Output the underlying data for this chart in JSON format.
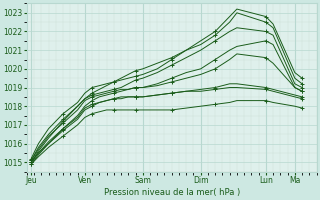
{
  "bg_color": "#cde8e2",
  "plot_bg_color": "#dff0ec",
  "grid_color": "#b8d8d0",
  "minor_grid_color": "#cce0d8",
  "line_color": "#1a5c1a",
  "xlabel": "Pression niveau de la mer( hPa )",
  "ylim": [
    1014.5,
    1023.5
  ],
  "xlim": [
    0,
    20
  ],
  "yticks": [
    1015,
    1016,
    1017,
    1018,
    1019,
    1020,
    1021,
    1022,
    1023
  ],
  "day_labels": [
    "Jeu",
    "Ven",
    "Sam",
    "Dim",
    "Lun",
    "Ma"
  ],
  "day_positions": [
    0.3,
    4.0,
    8.0,
    12.0,
    16.5,
    18.5
  ],
  "series": [
    {
      "x": [
        0.3,
        0.8,
        1.5,
        2.5,
        3.5,
        4.0,
        4.5,
        5.0,
        5.5,
        6.0,
        6.5,
        7.0,
        7.5,
        8.0,
        9.0,
        10.0,
        11.0,
        12.0,
        13.0,
        14.0,
        14.5,
        16.5,
        17.0,
        18.5,
        19.0
      ],
      "y": [
        1014.9,
        1015.4,
        1016.0,
        1016.8,
        1017.5,
        1018.0,
        1018.3,
        1018.5,
        1018.6,
        1018.7,
        1018.8,
        1018.9,
        1019.0,
        1019.0,
        1019.2,
        1019.5,
        1019.8,
        1020.0,
        1020.5,
        1021.0,
        1021.2,
        1021.5,
        1021.3,
        1019.0,
        1018.8
      ]
    },
    {
      "x": [
        0.3,
        0.8,
        1.5,
        2.5,
        3.5,
        4.0,
        4.5,
        5.0,
        5.5,
        6.0,
        6.5,
        7.0,
        7.5,
        8.0,
        9.0,
        10.0,
        11.0,
        12.0,
        13.0,
        14.0,
        14.5,
        16.5,
        17.0,
        18.5,
        19.0
      ],
      "y": [
        1015.0,
        1015.6,
        1016.3,
        1017.2,
        1018.0,
        1018.4,
        1018.6,
        1018.7,
        1018.8,
        1018.9,
        1019.0,
        1019.2,
        1019.4,
        1019.5,
        1019.8,
        1020.2,
        1020.6,
        1021.0,
        1021.5,
        1022.0,
        1022.2,
        1022.0,
        1021.8,
        1019.2,
        1019.0
      ]
    },
    {
      "x": [
        0.3,
        0.8,
        1.5,
        2.5,
        3.5,
        4.0,
        4.5,
        5.0,
        5.5,
        6.0,
        6.5,
        7.0,
        7.5,
        8.0,
        9.0,
        10.0,
        11.0,
        12.0,
        13.0,
        14.0,
        14.5,
        16.5,
        17.0,
        18.5,
        19.0
      ],
      "y": [
        1015.1,
        1015.8,
        1016.5,
        1017.3,
        1018.0,
        1018.4,
        1018.7,
        1018.9,
        1019.1,
        1019.3,
        1019.5,
        1019.7,
        1019.9,
        1020.0,
        1020.3,
        1020.6,
        1021.0,
        1021.3,
        1021.8,
        1022.5,
        1023.0,
        1022.5,
        1022.2,
        1019.5,
        1019.2
      ]
    },
    {
      "x": [
        0.3,
        0.8,
        1.5,
        2.5,
        3.5,
        4.0,
        4.5,
        5.0,
        5.5,
        6.0,
        6.5,
        7.0,
        7.5,
        8.0,
        9.0,
        10.0,
        11.0,
        12.0,
        13.0,
        14.0,
        14.5,
        16.5,
        17.0,
        18.5,
        19.0
      ],
      "y": [
        1015.2,
        1016.0,
        1016.8,
        1017.6,
        1018.2,
        1018.7,
        1019.0,
        1019.1,
        1019.2,
        1019.3,
        1019.4,
        1019.5,
        1019.6,
        1019.7,
        1020.0,
        1020.5,
        1021.0,
        1021.5,
        1022.0,
        1022.8,
        1023.2,
        1022.8,
        1022.4,
        1019.8,
        1019.5
      ]
    },
    {
      "x": [
        0.3,
        0.8,
        1.5,
        2.5,
        3.5,
        4.0,
        4.5,
        5.0,
        5.5,
        6.0,
        6.5,
        7.0,
        7.5,
        8.0,
        9.0,
        10.0,
        11.0,
        12.0,
        13.0,
        14.0,
        14.5,
        16.5,
        17.0,
        18.5,
        19.0
      ],
      "y": [
        1015.0,
        1015.5,
        1016.0,
        1016.7,
        1017.3,
        1017.8,
        1018.0,
        1018.2,
        1018.3,
        1018.4,
        1018.5,
        1018.5,
        1018.5,
        1018.5,
        1018.6,
        1018.7,
        1018.8,
        1018.9,
        1019.0,
        1019.2,
        1019.2,
        1019.0,
        1018.9,
        1018.6,
        1018.5
      ]
    },
    {
      "x": [
        0.3,
        0.8,
        1.5,
        2.5,
        3.5,
        4.0,
        4.5,
        5.0,
        5.5,
        6.0,
        6.5,
        7.0,
        7.5,
        8.0,
        9.0,
        10.0,
        11.0,
        12.0,
        13.0,
        14.0,
        14.5,
        16.5,
        17.0,
        18.5,
        19.0
      ],
      "y": [
        1014.9,
        1015.3,
        1015.8,
        1016.4,
        1017.0,
        1017.4,
        1017.6,
        1017.7,
        1017.8,
        1017.8,
        1017.8,
        1017.8,
        1017.8,
        1017.8,
        1017.8,
        1017.8,
        1017.9,
        1018.0,
        1018.1,
        1018.2,
        1018.3,
        1018.3,
        1018.2,
        1018.0,
        1017.9
      ]
    },
    {
      "x": [
        0.3,
        0.8,
        1.5,
        2.5,
        3.5,
        4.0,
        4.5,
        5.0,
        5.5,
        6.0,
        6.5,
        7.0,
        7.5,
        8.0,
        9.0,
        10.0,
        11.0,
        12.0,
        13.0,
        14.0,
        14.5,
        16.5,
        17.0,
        18.5,
        19.0
      ],
      "y": [
        1015.0,
        1015.5,
        1016.1,
        1016.8,
        1017.4,
        1017.9,
        1018.1,
        1018.2,
        1018.3,
        1018.4,
        1018.4,
        1018.5,
        1018.5,
        1018.5,
        1018.6,
        1018.7,
        1018.8,
        1018.8,
        1018.9,
        1019.0,
        1019.0,
        1018.9,
        1018.8,
        1018.5,
        1018.4
      ]
    },
    {
      "x": [
        0.3,
        0.8,
        1.5,
        2.5,
        3.5,
        4.0,
        4.5,
        5.0,
        5.5,
        6.0,
        6.5,
        7.0,
        7.5,
        8.0,
        9.0,
        10.0,
        11.0,
        12.0,
        13.0,
        14.0,
        14.5,
        16.5,
        17.0,
        18.5,
        19.0
      ],
      "y": [
        1015.1,
        1015.7,
        1016.4,
        1017.1,
        1017.8,
        1018.3,
        1018.5,
        1018.6,
        1018.7,
        1018.8,
        1018.9,
        1018.9,
        1019.0,
        1019.0,
        1019.1,
        1019.3,
        1019.5,
        1019.7,
        1020.0,
        1020.5,
        1020.8,
        1020.6,
        1020.3,
        1019.0,
        1018.8
      ]
    }
  ]
}
